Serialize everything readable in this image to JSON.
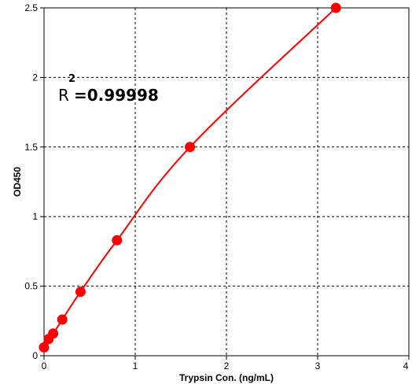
{
  "chart_data": {
    "type": "scatter",
    "title": "",
    "xlabel": "Trypsin Con. (ng/mL)",
    "ylabel": "OD450",
    "xlim": [
      0,
      4
    ],
    "ylim": [
      0,
      2.5
    ],
    "x_ticks": [
      "0",
      "1",
      "2",
      "3",
      "4"
    ],
    "y_ticks": [
      "0",
      "0.5",
      "1",
      "1.5",
      "2",
      "2.5"
    ],
    "x_tick_values": [
      0,
      1,
      2,
      3,
      4
    ],
    "y_tick_values": [
      0,
      0.5,
      1,
      1.5,
      2,
      2.5
    ],
    "grid": true,
    "series": [
      {
        "x": [
          0,
          0.05,
          0.1,
          0.2,
          0.4,
          0.8,
          1.6,
          3.2
        ],
        "y": [
          0.06,
          0.12,
          0.16,
          0.26,
          0.46,
          0.83,
          1.5,
          2.5
        ],
        "color": "#ff0000",
        "marker": "circle",
        "fit_curve": true
      }
    ],
    "annotation": {
      "r_letter": "R",
      "superscript": "2",
      "value_text": "=0.99998"
    }
  }
}
